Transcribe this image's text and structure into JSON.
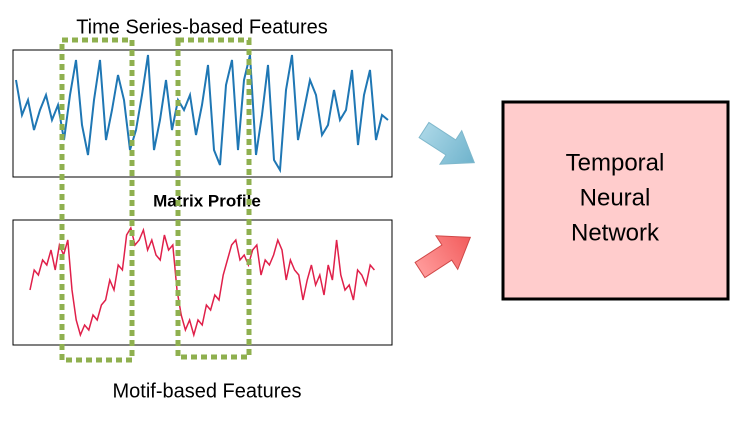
{
  "top_panel": {
    "title": "Time Series-based Features"
  },
  "middle_label": "Matrix Profile",
  "bottom_panel": {
    "title": "Motif-based Features"
  },
  "network": {
    "lines": [
      "Temporal",
      "Neural",
      "Network"
    ]
  }
}
